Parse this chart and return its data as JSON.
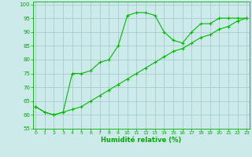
{
  "x": [
    0,
    1,
    2,
    3,
    4,
    5,
    6,
    7,
    8,
    9,
    10,
    11,
    12,
    13,
    14,
    15,
    16,
    17,
    18,
    19,
    20,
    21,
    22,
    23
  ],
  "y_curve": [
    63,
    61,
    60,
    61,
    75,
    75,
    76,
    79,
    80,
    85,
    96,
    97,
    97,
    96,
    90,
    87,
    86,
    90,
    93,
    93,
    95,
    95,
    95,
    95
  ],
  "y_line": [
    63,
    61,
    60,
    61,
    62,
    63,
    65,
    67,
    69,
    71,
    73,
    75,
    77,
    79,
    81,
    83,
    84,
    86,
    88,
    89,
    91,
    92,
    94,
    95
  ],
  "line_color": "#00bb00",
  "bg_color": "#cceaea",
  "grid_color": "#aacccc",
  "xlabel": "Humidité relative (%)",
  "xlabel_color": "#00aa00",
  "tick_color": "#00aa00",
  "xlim": [
    -0.3,
    23.3
  ],
  "ylim": [
    55,
    101
  ],
  "yticks": [
    55,
    60,
    65,
    70,
    75,
    80,
    85,
    90,
    95,
    100
  ],
  "xticks": [
    0,
    1,
    2,
    3,
    4,
    5,
    6,
    7,
    8,
    9,
    10,
    11,
    12,
    13,
    14,
    15,
    16,
    17,
    18,
    19,
    20,
    21,
    22,
    23
  ]
}
